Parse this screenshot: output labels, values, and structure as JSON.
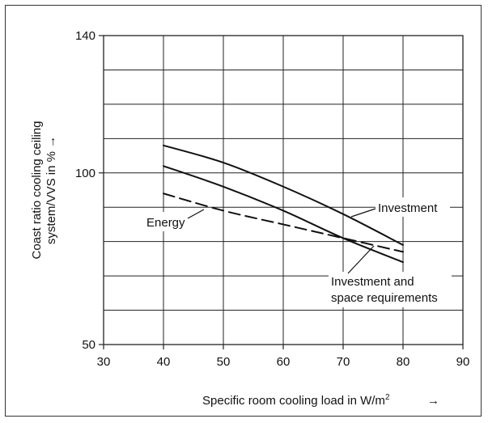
{
  "chart_data": {
    "type": "line",
    "xlabel": "Specific room cooling load in W/m",
    "xlabel_sup": "2",
    "xlabel_arrow": "→",
    "ylabel_line1": "Coast ratio cooling ceiling",
    "ylabel_line2": "system/VVS in %",
    "ylabel_arrow": "→",
    "xlim": [
      30,
      90
    ],
    "ylim": [
      50,
      140
    ],
    "x_ticks": [
      30,
      40,
      50,
      60,
      70,
      80,
      90
    ],
    "y_ticks": [
      50,
      100,
      140
    ],
    "grid": true,
    "series": [
      {
        "name": "Investment",
        "style": "solid",
        "x": [
          40,
          50,
          60,
          70,
          80
        ],
        "y": [
          108,
          103,
          96,
          88,
          79
        ]
      },
      {
        "name": "Investment and space requirements",
        "style": "solid",
        "x": [
          40,
          50,
          60,
          70,
          80
        ],
        "y": [
          102,
          96,
          89,
          81,
          74
        ]
      },
      {
        "name": "Energy",
        "style": "dashed",
        "x": [
          40,
          50,
          60,
          70,
          80
        ],
        "y": [
          94,
          89,
          85,
          81,
          77
        ]
      }
    ],
    "annotations": {
      "investment": "Investment",
      "space_line1": "Investment and",
      "space_line2": "space requirements",
      "energy": "Energy"
    }
  }
}
